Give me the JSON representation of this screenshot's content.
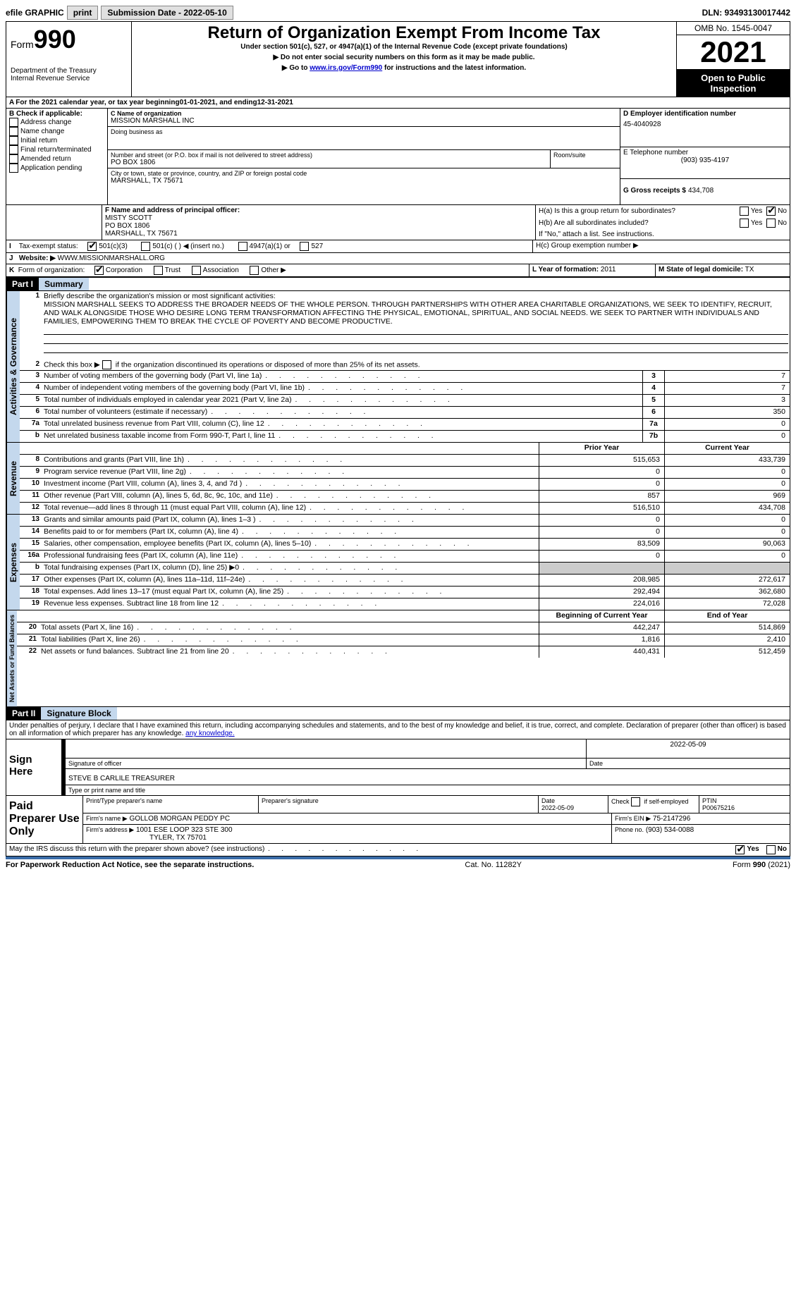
{
  "topbar": {
    "efile": "efile GRAPHIC",
    "print": "print",
    "submission": "Submission Date - 2022-05-10",
    "dln": "DLN: 93493130017442"
  },
  "header": {
    "form_label": "Form",
    "form_number": "990",
    "dept": "Department of the Treasury\nInternal Revenue Service",
    "title": "Return of Organization Exempt From Income Tax",
    "subtitle": "Under section 501(c), 527, or 4947(a)(1) of the Internal Revenue Code (except private foundations)",
    "note1": "▶ Do not enter social security numbers on this form as it may be made public.",
    "note2_pre": "▶ Go to ",
    "note2_link": "www.irs.gov/Form990",
    "note2_post": " for instructions and the latest information.",
    "omb": "OMB No. 1545-0047",
    "year": "2021",
    "inspect": "Open to Public Inspection"
  },
  "lineA": {
    "text_pre": "For the 2021 calendar year, or tax year beginning ",
    "begin": "01-01-2021",
    "mid": " , and ending ",
    "end": "12-31-2021"
  },
  "boxB": {
    "label": "B Check if applicable:",
    "items": [
      "Address change",
      "Name change",
      "Initial return",
      "Final return/terminated",
      "Amended return",
      "Application pending"
    ]
  },
  "boxC": {
    "label": "C Name of organization",
    "name": "MISSION MARSHALL INC",
    "dba": "Doing business as",
    "addr_label": "Number and street (or P.O. box if mail is not delivered to street address)",
    "addr": "PO BOX 1806",
    "room_label": "Room/suite",
    "city_label": "City or town, state or province, country, and ZIP or foreign postal code",
    "city": "MARSHALL, TX  75671"
  },
  "boxD": {
    "label": "D Employer identification number",
    "val": "45-4040928"
  },
  "boxE": {
    "label": "E Telephone number",
    "val": "(903) 935-4197"
  },
  "boxG": {
    "label": "G Gross receipts $",
    "val": "434,708"
  },
  "boxF": {
    "label": "F  Name and address of principal officer:",
    "name": "MISTY SCOTT",
    "addr1": "PO BOX 1806",
    "addr2": "MARSHALL, TX  75671"
  },
  "boxH": {
    "a_label": "H(a)  Is this a group return for subordinates?",
    "b_label": "H(b)  Are all subordinates included?",
    "b_note": "If \"No,\" attach a list. See instructions.",
    "c_label": "H(c)  Group exemption number ▶",
    "yes": "Yes",
    "no": "No"
  },
  "boxI": {
    "label": "Tax-exempt status:",
    "opts": [
      "501(c)(3)",
      "501(c) (    ) ◀ (insert no.)",
      "4947(a)(1) or",
      "527"
    ]
  },
  "boxJ": {
    "label": "Website: ▶",
    "val": "WWW.MISSIONMARSHALL.ORG"
  },
  "boxK": {
    "label": "Form of organization:",
    "opts": [
      "Corporation",
      "Trust",
      "Association",
      "Other ▶"
    ]
  },
  "boxL": {
    "label": "L Year of formation:",
    "val": "2011"
  },
  "boxM": {
    "label": "M State of legal domicile:",
    "val": "TX"
  },
  "part1": {
    "hdr": "Part I",
    "title": "Summary",
    "tab_ag": "Activities & Governance",
    "tab_rev": "Revenue",
    "tab_exp": "Expenses",
    "tab_na": "Net Assets or Fund Balances",
    "l1_label": "Briefly describe the organization's mission or most significant activities:",
    "l1_text": "MISSION MARSHALL SEEKS TO ADDRESS THE BROADER NEEDS OF THE WHOLE PERSON. THROUGH PARTNERSHIPS WITH OTHER AREA CHARITABLE ORGANIZATIONS, WE SEEK TO IDENTIFY, RECRUIT, AND WALK ALONGSIDE THOSE WHO DESIRE LONG TERM TRANSFORMATION AFFECTING THE PHYSICAL, EMOTIONAL, SPIRITUAL, AND SOCIAL NEEDS. WE SEEK TO PARTNER WITH INDIVIDUALS AND FAMILIES, EMPOWERING THEM TO BREAK THE CYCLE OF POVERTY AND BECOME PRODUCTIVE.",
    "l2": "Check this box ▶        if the organization discontinued its operations or disposed of more than 25% of its net assets.",
    "rows_ag": [
      {
        "n": "3",
        "t": "Number of voting members of the governing body (Part VI, line 1a)",
        "b": "3",
        "v": "7"
      },
      {
        "n": "4",
        "t": "Number of independent voting members of the governing body (Part VI, line 1b)",
        "b": "4",
        "v": "7"
      },
      {
        "n": "5",
        "t": "Total number of individuals employed in calendar year 2021 (Part V, line 2a)",
        "b": "5",
        "v": "3"
      },
      {
        "n": "6",
        "t": "Total number of volunteers (estimate if necessary)",
        "b": "6",
        "v": "350"
      },
      {
        "n": "7a",
        "t": "Total unrelated business revenue from Part VIII, column (C), line 12",
        "b": "7a",
        "v": "0"
      },
      {
        "n": "b",
        "t": "Net unrelated business taxable income from Form 990-T, Part I, line 11",
        "b": "7b",
        "v": "0"
      }
    ],
    "rev_hdr": {
      "prior": "Prior Year",
      "curr": "Current Year"
    },
    "rows_rev": [
      {
        "n": "8",
        "t": "Contributions and grants (Part VIII, line 1h)",
        "p": "515,653",
        "c": "433,739"
      },
      {
        "n": "9",
        "t": "Program service revenue (Part VIII, line 2g)",
        "p": "0",
        "c": "0"
      },
      {
        "n": "10",
        "t": "Investment income (Part VIII, column (A), lines 3, 4, and 7d )",
        "p": "0",
        "c": "0"
      },
      {
        "n": "11",
        "t": "Other revenue (Part VIII, column (A), lines 5, 6d, 8c, 9c, 10c, and 11e)",
        "p": "857",
        "c": "969"
      },
      {
        "n": "12",
        "t": "Total revenue—add lines 8 through 11 (must equal Part VIII, column (A), line 12)",
        "p": "516,510",
        "c": "434,708"
      }
    ],
    "rows_exp": [
      {
        "n": "13",
        "t": "Grants and similar amounts paid (Part IX, column (A), lines 1–3 )",
        "p": "0",
        "c": "0"
      },
      {
        "n": "14",
        "t": "Benefits paid to or for members (Part IX, column (A), line 4)",
        "p": "0",
        "c": "0"
      },
      {
        "n": "15",
        "t": "Salaries, other compensation, employee benefits (Part IX, column (A), lines 5–10)",
        "p": "83,509",
        "c": "90,063"
      },
      {
        "n": "16a",
        "t": "Professional fundraising fees (Part IX, column (A), line 11e)",
        "p": "0",
        "c": "0"
      },
      {
        "n": "b",
        "t": "Total fundraising expenses (Part IX, column (D), line 25) ▶0",
        "p": "",
        "c": "",
        "shade": true
      },
      {
        "n": "17",
        "t": "Other expenses (Part IX, column (A), lines 11a–11d, 11f–24e)",
        "p": "208,985",
        "c": "272,617"
      },
      {
        "n": "18",
        "t": "Total expenses. Add lines 13–17 (must equal Part IX, column (A), line 25)",
        "p": "292,494",
        "c": "362,680"
      },
      {
        "n": "19",
        "t": "Revenue less expenses. Subtract line 18 from line 12",
        "p": "224,016",
        "c": "72,028"
      }
    ],
    "na_hdr": {
      "b": "Beginning of Current Year",
      "e": "End of Year"
    },
    "rows_na": [
      {
        "n": "20",
        "t": "Total assets (Part X, line 16)",
        "p": "442,247",
        "c": "514,869"
      },
      {
        "n": "21",
        "t": "Total liabilities (Part X, line 26)",
        "p": "1,816",
        "c": "2,410"
      },
      {
        "n": "22",
        "t": "Net assets or fund balances. Subtract line 21 from line 20",
        "p": "440,431",
        "c": "512,459"
      }
    ]
  },
  "part2": {
    "hdr": "Part II",
    "title": "Signature Block",
    "decl": "Under penalties of perjury, I declare that I have examined this return, including accompanying schedules and statements, and to the best of my knowledge and belief, it is true, correct, and complete. Declaration of preparer (other than officer) is based on all information of which preparer has any knowledge.",
    "sign_here": "Sign Here",
    "sig_officer": "Signature of officer",
    "date_label": "Date",
    "sig_date": "2022-05-09",
    "officer_name": "STEVE B CARLILE  TREASURER",
    "type_name": "Type or print name and title",
    "paid_prep": "Paid Preparer Use Only",
    "pp_name_label": "Print/Type preparer's name",
    "pp_sig_label": "Preparer's signature",
    "pp_date_label": "Date",
    "pp_date": "2022-05-09",
    "pp_check": "Check          if self-employed",
    "ptin_label": "PTIN",
    "ptin": "P00675216",
    "firm_name_label": "Firm's name      ▶",
    "firm_name": "GOLLOB MORGAN PEDDY PC",
    "firm_ein_label": "Firm's EIN ▶",
    "firm_ein": "75-2147296",
    "firm_addr_label": "Firm's address ▶",
    "firm_addr1": "1001 ESE LOOP 323 STE 300",
    "firm_addr2": "TYLER, TX  75701",
    "phone_label": "Phone no.",
    "phone": "(903) 534-0088",
    "may_irs": "May the IRS discuss this return with the preparer shown above? (see instructions)"
  },
  "footer": {
    "left": "For Paperwork Reduction Act Notice, see the separate instructions.",
    "mid": "Cat. No. 11282Y",
    "right": "Form 990 (2021)"
  }
}
